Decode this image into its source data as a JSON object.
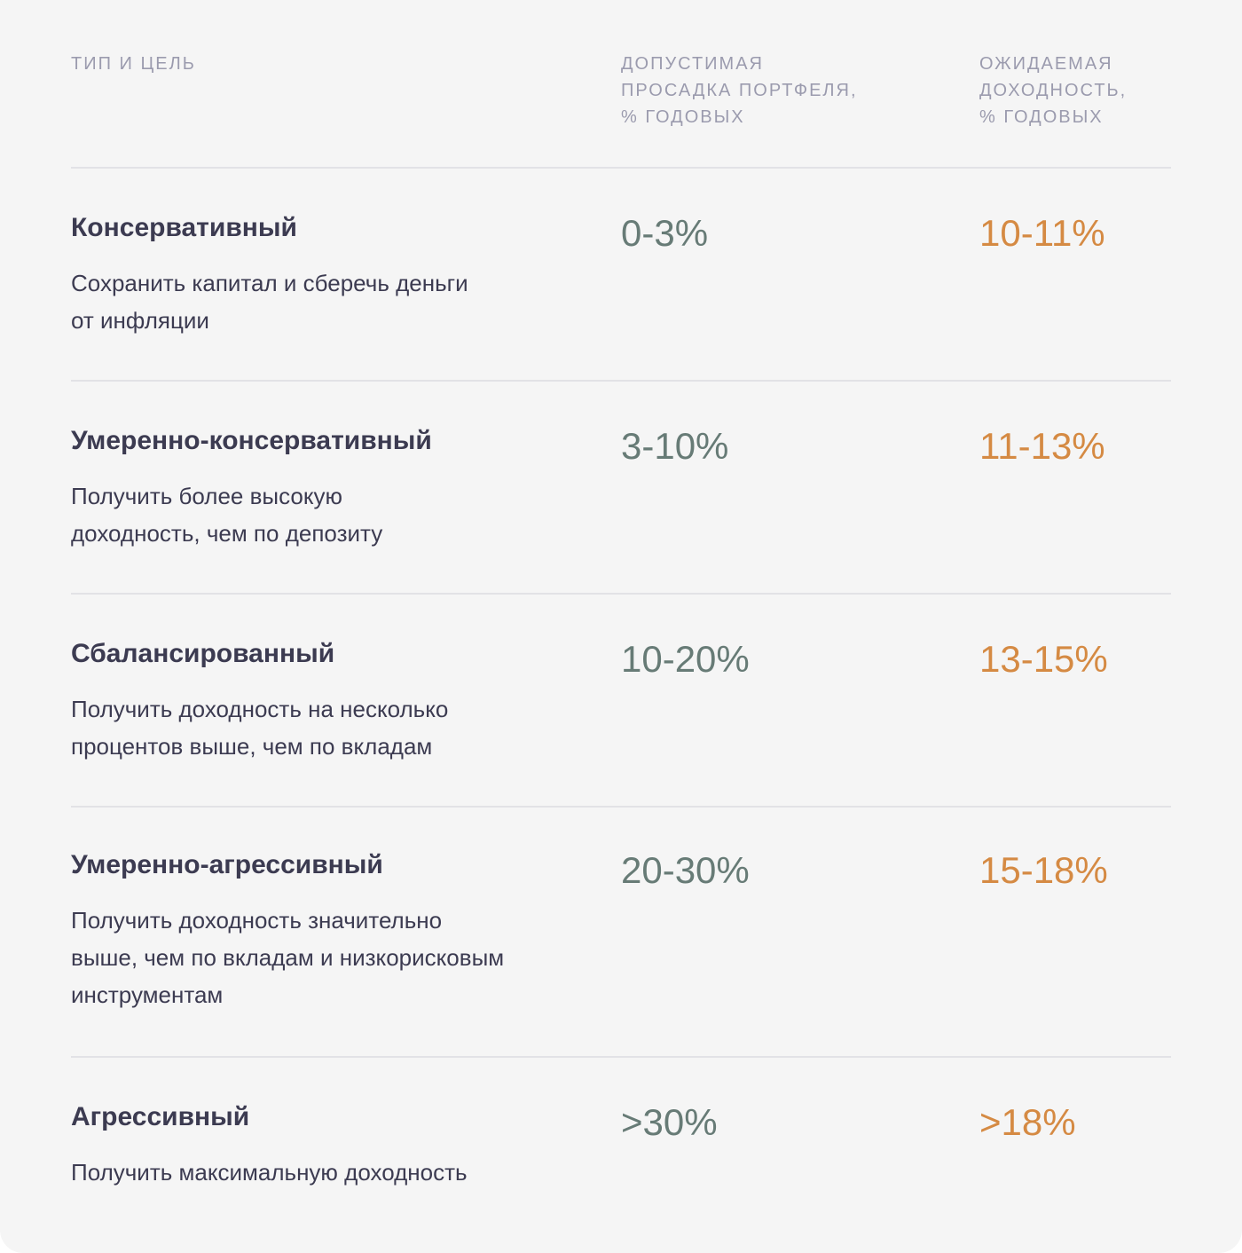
{
  "header": {
    "type_goal": "ТИП И ЦЕЛЬ",
    "drawdown": [
      "ДОПУСТИМАЯ",
      "ПРОСАДКА ПОРТФЕЛЯ,",
      "% ГОДОВЫХ"
    ],
    "return": [
      "ОЖИДАЕМАЯ",
      "ДОХОДНОСТЬ,",
      "% ГОДОВЫХ"
    ]
  },
  "rows": [
    {
      "title": "Консервативный",
      "desc": "Сохранить капитал и сберечь деньги от инфляции",
      "drawdown": "0-3%",
      "return": "10-11%"
    },
    {
      "title": "Умеренно-консервативный",
      "desc": "Получить более высокую доходность, чем по депозиту",
      "drawdown": "3-10%",
      "return": "11-13%"
    },
    {
      "title": "Сбалансированный",
      "desc": "Получить доходность на несколько процентов выше, чем по вкладам",
      "drawdown": "10-20%",
      "return": "13-15%"
    },
    {
      "title": "Умеренно-агрессивный",
      "desc": "Получить доходность значительно выше, чем по вкладам и низкорисковым инструментам",
      "drawdown": "20-30%",
      "return": "15-18%"
    },
    {
      "title": "Агрессивный",
      "desc": "Получить максимальную доходность",
      "drawdown": ">30%",
      "return": ">18%"
    }
  ],
  "colors": {
    "drawdown": "#677b76",
    "return": "#d58a43",
    "text": "#3c3b51"
  }
}
